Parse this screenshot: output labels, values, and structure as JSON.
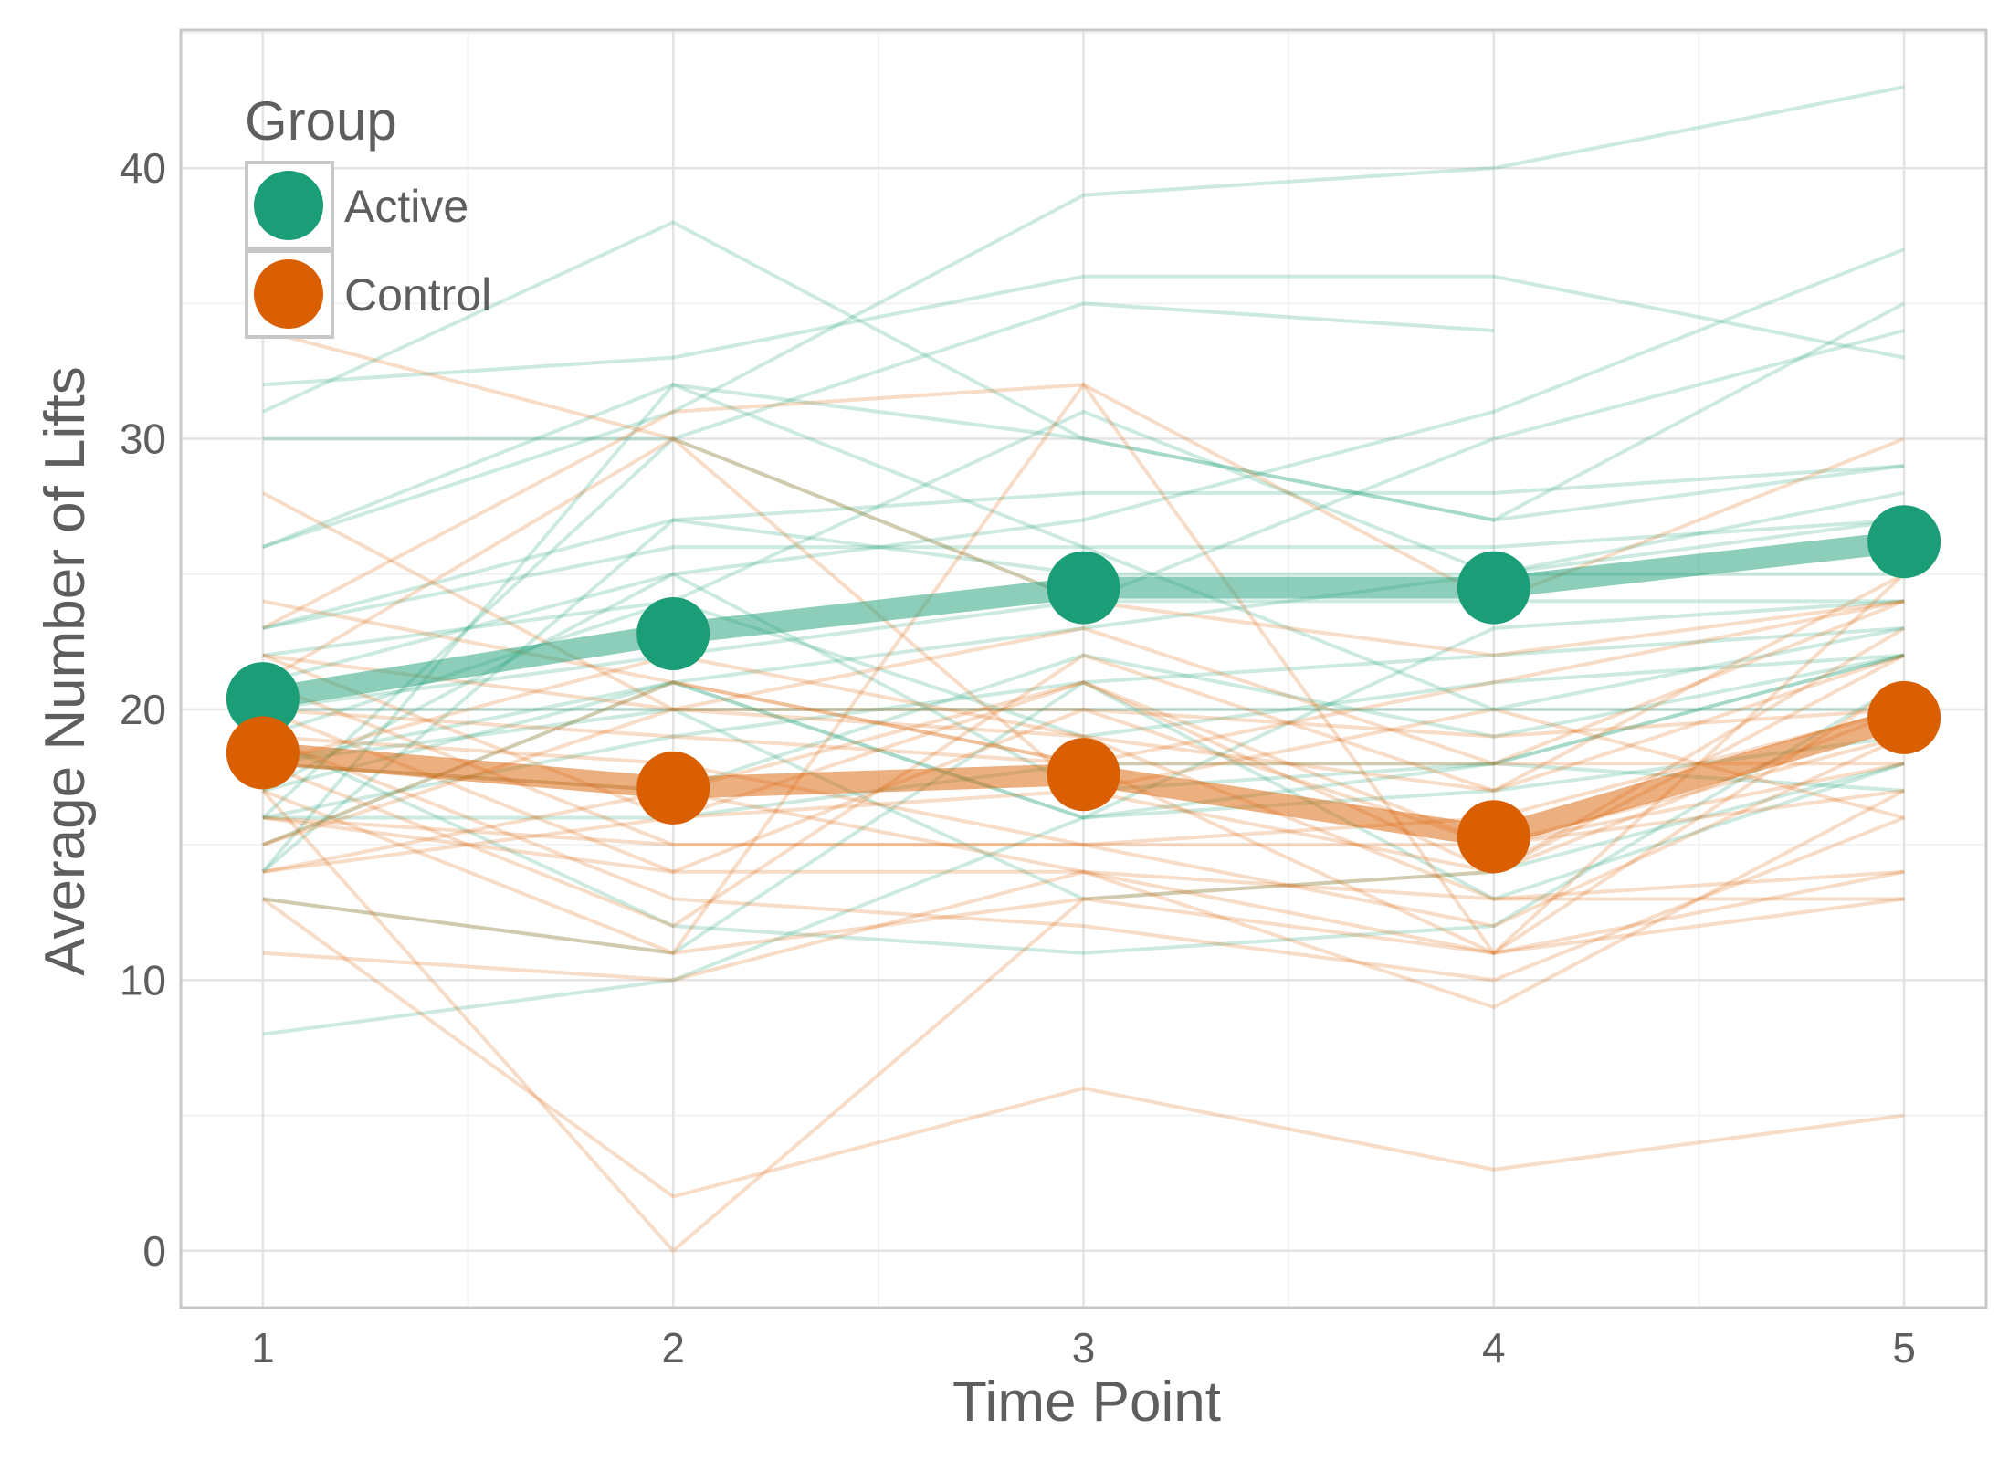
{
  "chart_data": {
    "type": "line",
    "xlabel": "Time Point",
    "ylabel": "Average Number of Lifts",
    "x": [
      1,
      2,
      3,
      4,
      5
    ],
    "xticks": [
      "1",
      "2",
      "3",
      "4",
      "5"
    ],
    "yticks": [
      "0",
      "10",
      "20",
      "30",
      "40"
    ],
    "xlim": [
      0.8,
      5.2
    ],
    "ylim": [
      -2.1,
      45.1
    ],
    "grid": true,
    "legend": {
      "title": "Group",
      "position": "top-left",
      "entries": [
        "Active",
        "Control"
      ]
    },
    "colors": {
      "Active": "#1b9e77",
      "Control": "#d95f02"
    },
    "series": [
      {
        "name": "Active",
        "values": [
          20.4,
          22.8,
          24.5,
          24.5,
          26.2
        ]
      },
      {
        "name": "Control",
        "values": [
          18.4,
          17.1,
          17.6,
          15.3,
          19.7
        ]
      }
    ],
    "individual_lines": {
      "Active": [
        [
          8,
          10,
          16,
          18,
          22
        ],
        [
          32,
          33,
          36,
          36,
          33
        ],
        [
          31,
          38,
          30,
          27,
          35
        ],
        [
          30,
          30,
          35,
          34,
          null
        ],
        [
          26,
          31,
          39,
          40,
          43
        ],
        [
          26,
          32,
          30,
          27,
          29
        ],
        [
          23,
          27,
          28,
          28,
          29
        ],
        [
          21,
          25,
          27,
          31,
          37
        ],
        [
          23,
          26,
          26,
          26,
          27
        ],
        [
          16,
          30,
          24,
          30,
          34
        ],
        [
          18,
          21,
          23,
          25,
          28
        ],
        [
          14,
          27,
          25,
          25,
          25
        ],
        [
          20,
          22,
          24,
          24,
          24
        ],
        [
          16,
          19,
          21,
          22,
          23
        ],
        [
          18,
          17,
          22,
          19,
          22
        ],
        [
          19,
          12,
          11,
          12,
          21
        ],
        [
          17,
          25,
          17,
          18,
          17
        ],
        [
          22,
          24,
          19,
          21,
          22
        ],
        [
          15,
          21,
          16,
          17,
          19
        ],
        [
          20,
          20,
          20,
          20,
          20
        ],
        [
          13,
          11,
          21,
          13,
          18
        ],
        [
          16,
          16,
          18,
          18,
          22
        ],
        [
          19,
          24,
          31,
          25,
          27
        ],
        [
          17,
          21,
          16,
          23,
          24
        ],
        [
          14,
          32,
          26,
          20,
          23
        ],
        [
          18,
          20,
          13,
          14,
          18
        ]
      ],
      "Control": [
        [
          28,
          20,
          23,
          18,
          24
        ],
        [
          24,
          21,
          18,
          11,
          25
        ],
        [
          22,
          20,
          19,
          13,
          14
        ],
        [
          21,
          15,
          15,
          16,
          20
        ],
        [
          20,
          14,
          20,
          15,
          18
        ],
        [
          19,
          13,
          12,
          10,
          16
        ],
        [
          18,
          12,
          22,
          17,
          25
        ],
        [
          17,
          0,
          13,
          14,
          22
        ],
        [
          13,
          2,
          6,
          3,
          5
        ],
        [
          11,
          10,
          14,
          11,
          14
        ],
        [
          14,
          17,
          14,
          13,
          13
        ],
        [
          16,
          14,
          14,
          9,
          17
        ],
        [
          15,
          20,
          20,
          19,
          20
        ],
        [
          13,
          11,
          13,
          11,
          13
        ],
        [
          21,
          30,
          17,
          14,
          20
        ],
        [
          17,
          11,
          32,
          11,
          21
        ],
        [
          18,
          17,
          21,
          15,
          19
        ],
        [
          23,
          31,
          32,
          24,
          30
        ],
        [
          19,
          18,
          15,
          12,
          19
        ],
        [
          20,
          19,
          18,
          18,
          18
        ],
        [
          14,
          16,
          17,
          20,
          16
        ],
        [
          15,
          21,
          18,
          21,
          24
        ],
        [
          34,
          30,
          24,
          22,
          24
        ],
        [
          18,
          22,
          19,
          17,
          22
        ],
        [
          22,
          16,
          21,
          14,
          23
        ],
        [
          16,
          15,
          15,
          15,
          17
        ]
      ]
    }
  }
}
